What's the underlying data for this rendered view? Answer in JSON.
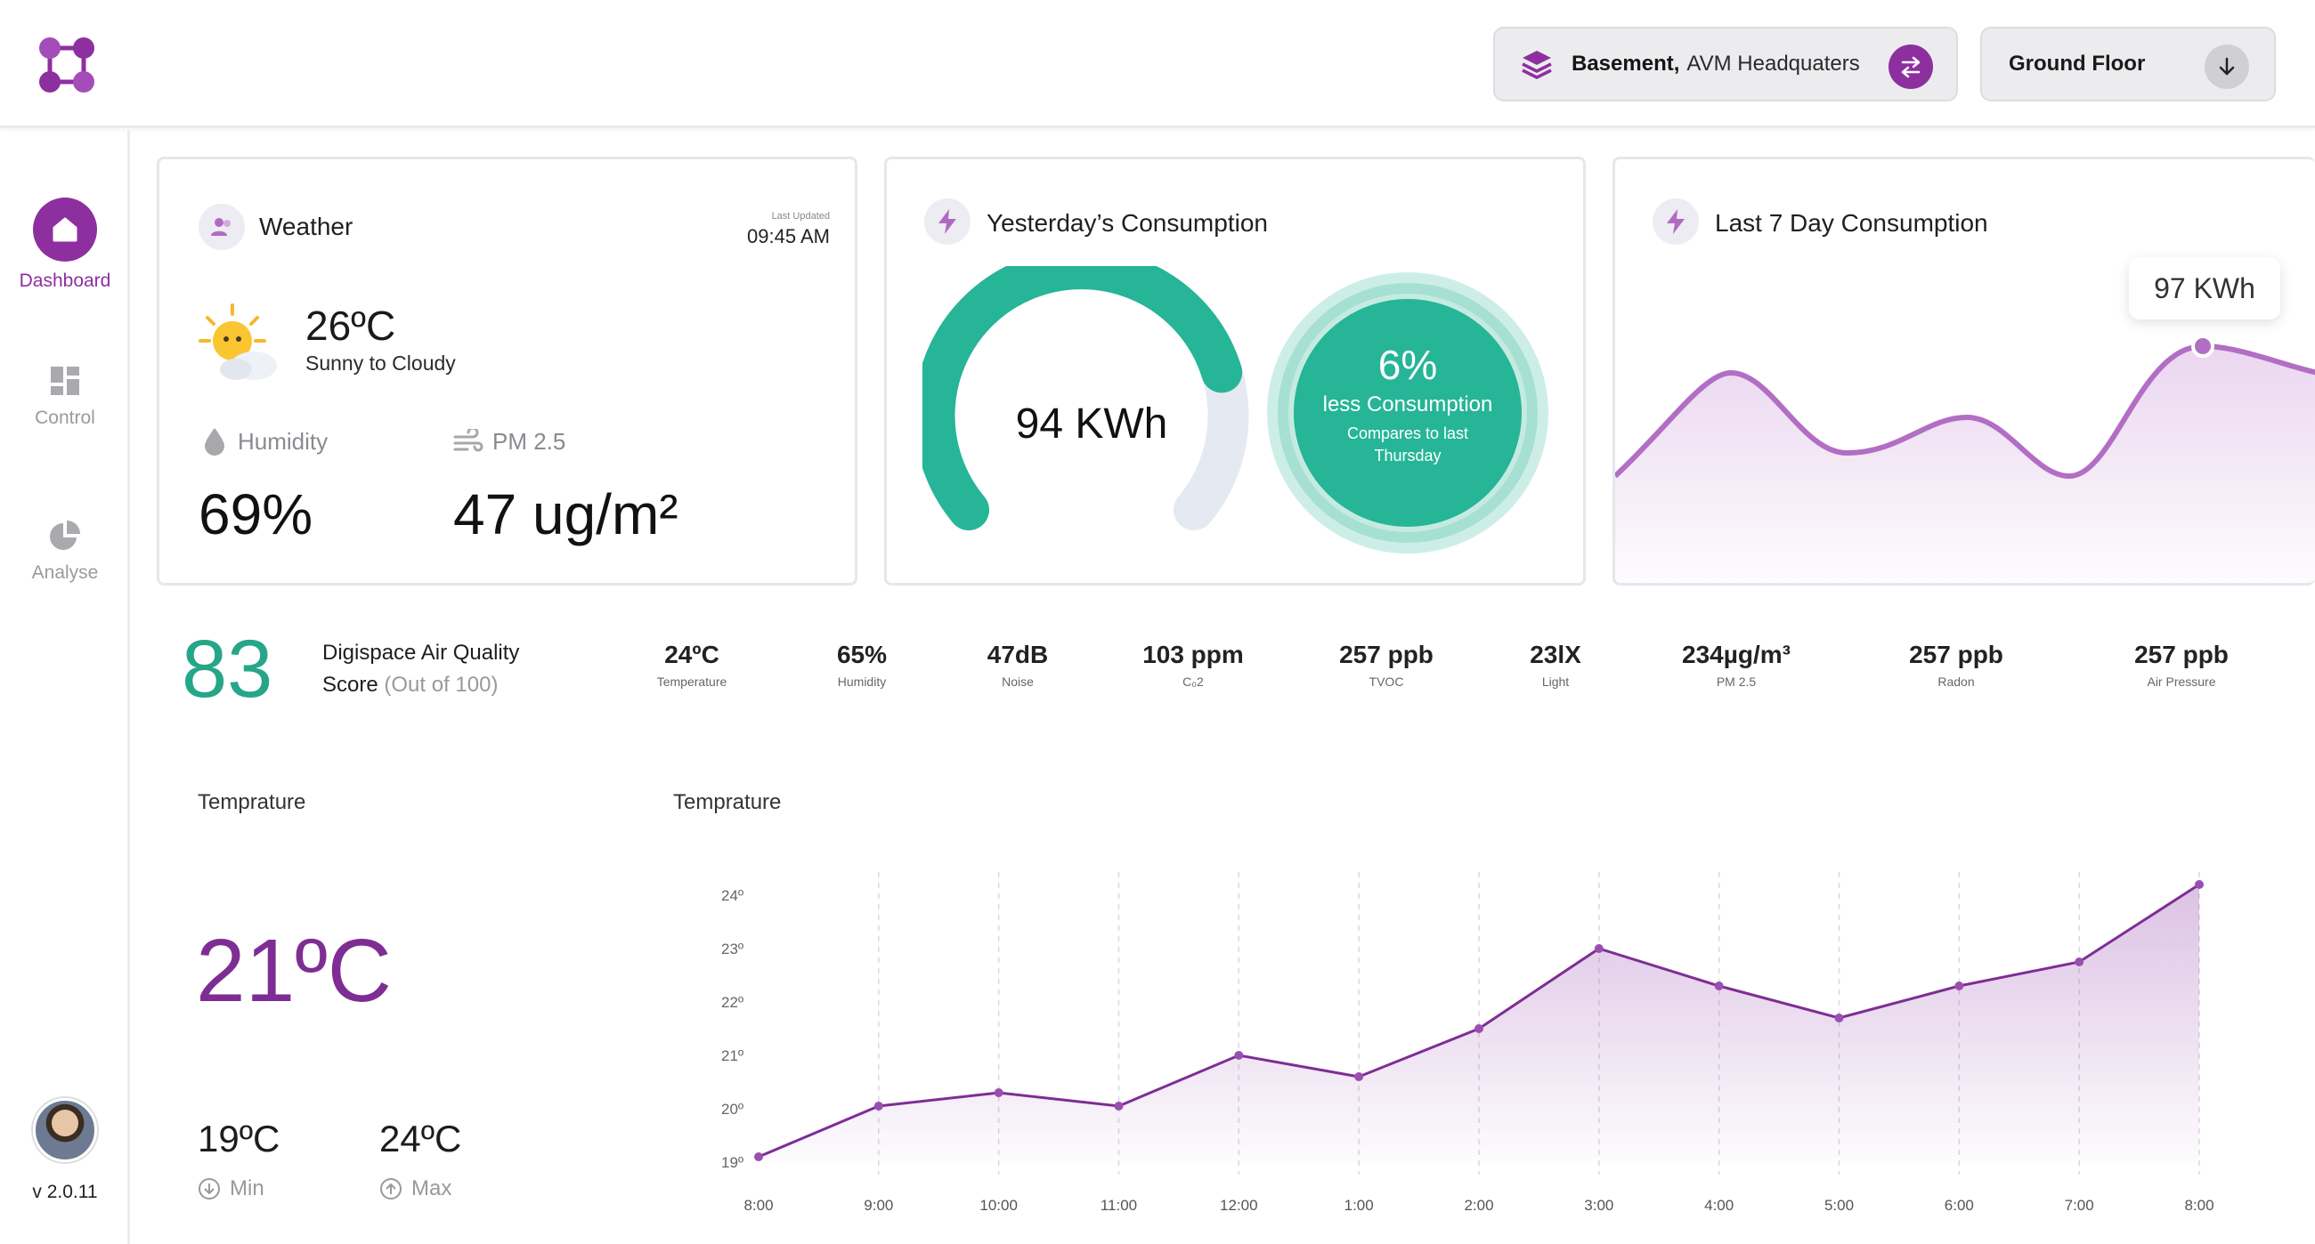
{
  "header": {
    "location_bold": "Basement,",
    "location_rest": "AVM Headquaters",
    "floor": "Ground Floor"
  },
  "sidebar": {
    "items": [
      {
        "label": "Dashboard",
        "icon": "home-icon",
        "active": true
      },
      {
        "label": "Control",
        "icon": "grid-icon",
        "active": false
      },
      {
        "label": "Analyse",
        "icon": "pie-icon",
        "active": false
      }
    ],
    "version": "v 2.0.11"
  },
  "weather": {
    "title": "Weather",
    "updated_label": "Last Updated",
    "updated_time": "09:45 AM",
    "temperature": "26ºC",
    "condition": "Sunny to Cloudy",
    "humidity_label": "Humidity",
    "humidity_value": "69%",
    "pm_label": "PM 2.5",
    "pm_value": "47 ug/m²"
  },
  "yesterday": {
    "title": "Yesterday’s Consumption",
    "value": "94 KWh",
    "gauge_fraction": 0.78,
    "percent": "6%",
    "less": "less Consumption",
    "compare": "Compares to last",
    "compare2": "Thursday"
  },
  "week": {
    "title": "Last 7 Day Consumption",
    "tooltip": "97 KWh"
  },
  "air_quality": {
    "score": "83",
    "title_line1": "Digispace Air Quality",
    "title_line2": "Score",
    "title_muted": "(Out of 100)",
    "metrics": [
      {
        "value": "24ºC",
        "label": "Temperature"
      },
      {
        "value": "65%",
        "label": "Humidity"
      },
      {
        "value": "47dB",
        "label": "Noise"
      },
      {
        "value": "103 ppm",
        "label": "C₀2"
      },
      {
        "value": "257 ppb",
        "label": "TVOC"
      },
      {
        "value": "23lX",
        "label": "Light"
      },
      {
        "value": "234µg/m³",
        "label": "PM 2.5"
      },
      {
        "value": "257 ppb",
        "label": "Radon"
      },
      {
        "value": "257 ppb",
        "label": "Air Pressure"
      }
    ]
  },
  "temperature_panel": {
    "label": "Temprature",
    "current": "21ºC",
    "min_value": "19ºC",
    "min_label": "Min",
    "max_value": "24ºC",
    "max_label": "Max"
  },
  "chart_data": {
    "type": "area",
    "title": "Temprature",
    "x": [
      "8:00",
      "9:00",
      "10:00",
      "11:00",
      "12:00",
      "1:00",
      "2:00",
      "3:00",
      "4:00",
      "5:00",
      "6:00",
      "7:00",
      "8:00"
    ],
    "values": [
      19.1,
      20.05,
      20.3,
      20.05,
      21.0,
      20.6,
      21.5,
      23.0,
      22.3,
      21.7,
      22.3,
      22.75,
      24.2
    ],
    "yticks": [
      "24º",
      "23º",
      "22º",
      "21º",
      "20º",
      "19º"
    ],
    "ylim": [
      19,
      24
    ],
    "color": "#7e2d94"
  },
  "colors": {
    "brand": "#8e2fa0",
    "green": "#26b597",
    "light_purple": "#b26ec4"
  }
}
